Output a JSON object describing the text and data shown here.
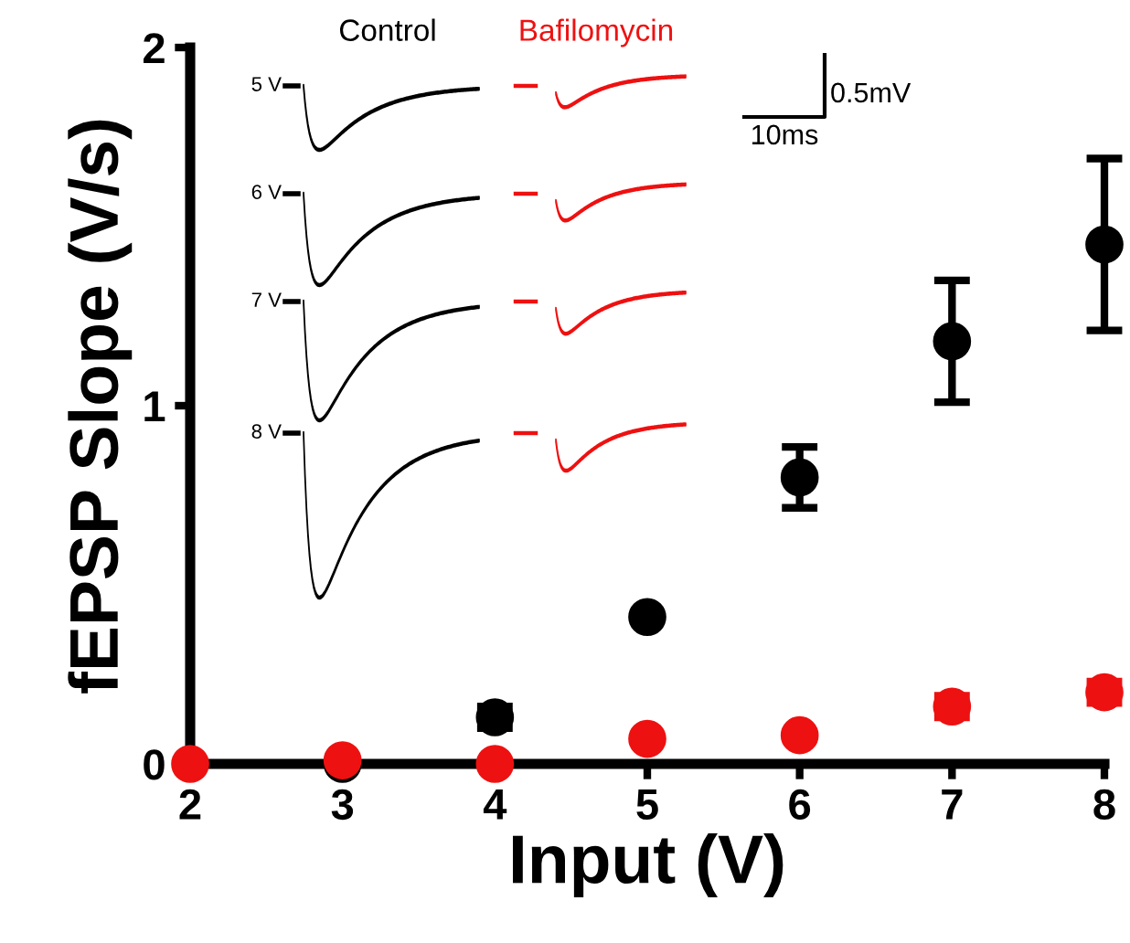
{
  "chart_data": {
    "type": "scatter",
    "xlabel": "Input (V)",
    "ylabel": "fEPSP Slope (V/s)",
    "x": [
      2,
      3,
      4,
      5,
      6,
      7,
      8
    ],
    "series": [
      {
        "name": "Control",
        "color": "#000000",
        "values": [
          null,
          0,
          0.13,
          0.41,
          0.8,
          1.18,
          1.45
        ],
        "errors": [
          null,
          null,
          0.03,
          null,
          0.085,
          0.17,
          0.24
        ]
      },
      {
        "name": "Bafilomycin",
        "color": "#ee1111",
        "values": [
          0,
          0.01,
          0,
          0.07,
          0.08,
          0.16,
          0.2
        ],
        "errors": [
          null,
          null,
          null,
          null,
          null,
          0.03,
          0.03
        ]
      }
    ],
    "xlim": [
      2,
      8
    ],
    "ylim": [
      0,
      2
    ],
    "xticks": [
      2,
      3,
      4,
      5,
      6,
      7,
      8
    ],
    "yticks": [
      0,
      1,
      2
    ],
    "marker": "circle",
    "grid": false,
    "legend": false,
    "annotations": [
      "5 V",
      "6 V",
      "7 V",
      "8 V",
      "0.5mV",
      "10ms"
    ]
  }
}
